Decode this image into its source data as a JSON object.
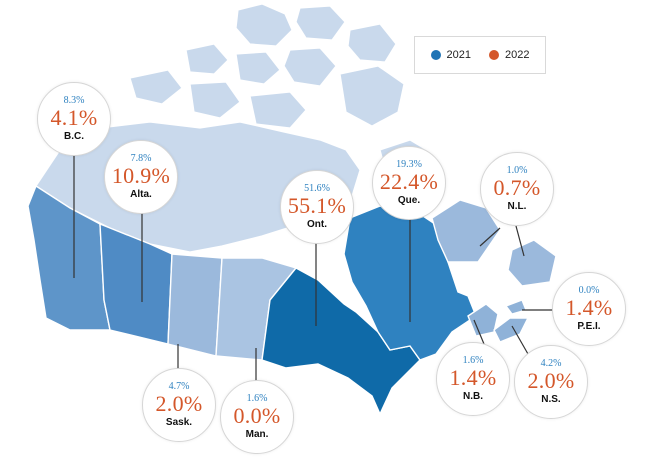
{
  "legend": [
    {
      "label": "2021",
      "color": "#1f74b5"
    },
    {
      "label": "2022",
      "color": "#d4572a"
    }
  ],
  "colors": {
    "value_2021": "#2f82c0",
    "value_2022": "#d4572a"
  },
  "provinces": [
    {
      "key": "bc",
      "name": "B.C.",
      "v2021": "8.3%",
      "v2022": "4.1%"
    },
    {
      "key": "alta",
      "name": "Alta.",
      "v2021": "7.8%",
      "v2022": "10.9%"
    },
    {
      "key": "ont",
      "name": "Ont.",
      "v2021": "51.6%",
      "v2022": "55.1%"
    },
    {
      "key": "que",
      "name": "Que.",
      "v2021": "19.3%",
      "v2022": "22.4%"
    },
    {
      "key": "nl",
      "name": "N.L.",
      "v2021": "1.0%",
      "v2022": "0.7%"
    },
    {
      "key": "pei",
      "name": "P.E.I.",
      "v2021": "0.0%",
      "v2022": "1.4%"
    },
    {
      "key": "nb",
      "name": "N.B.",
      "v2021": "1.6%",
      "v2022": "1.4%"
    },
    {
      "key": "ns",
      "name": "N.S.",
      "v2021": "4.2%",
      "v2022": "2.0%"
    },
    {
      "key": "sask",
      "name": "Sask.",
      "v2021": "4.7%",
      "v2022": "2.0%"
    },
    {
      "key": "man",
      "name": "Man.",
      "v2021": "1.6%",
      "v2022": "0.0%"
    }
  ]
}
